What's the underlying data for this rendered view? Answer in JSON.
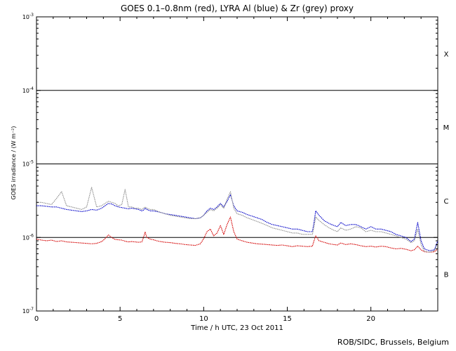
{
  "chart_data": {
    "type": "line",
    "title": "GOES 0.1–0.8nm (red), LYRA Al (blue) & Zr (grey) proxy",
    "xlabel": "Time / h UTC, 23 Oct 2011",
    "ylabel": "GOES irradiance / (W m⁻²)",
    "xlim": [
      0,
      24
    ],
    "ylim": [
      1e-07,
      0.001
    ],
    "yscale": "log",
    "grid": false,
    "x_ticks": [
      0,
      5,
      10,
      15,
      20
    ],
    "x_tick_labels": [
      "0",
      "5",
      "10",
      "15",
      "20"
    ],
    "y_ticks": [
      1e-07,
      1e-06,
      1e-05,
      0.0001,
      0.001
    ],
    "y_tick_labels": [
      {
        "base": "10",
        "exp": "-7"
      },
      {
        "base": "10",
        "exp": "-6"
      },
      {
        "base": "10",
        "exp": "-5"
      },
      {
        "base": "10",
        "exp": "-4"
      },
      {
        "base": "10",
        "exp": "-3"
      }
    ],
    "flare_thresholds": [
      1e-06,
      1e-05,
      0.0001
    ],
    "flare_classes": [
      {
        "label": "X",
        "y": 0.000316
      },
      {
        "label": "M",
        "y": 3.16e-05
      },
      {
        "label": "C",
        "y": 3.16e-06
      },
      {
        "label": "B",
        "y": 3.16e-07
      }
    ],
    "series": [
      {
        "color": "#d40000",
        "x": [
          0,
          0.3,
          0.6,
          0.9,
          1.2,
          1.5,
          1.8,
          2.1,
          2.4,
          2.7,
          3.0,
          3.3,
          3.6,
          3.9,
          4.1,
          4.3,
          4.5,
          4.7,
          4.9,
          5.1,
          5.3,
          5.5,
          5.7,
          5.9,
          6.1,
          6.3,
          6.4,
          6.5,
          6.6,
          6.8,
          7.0,
          7.2,
          7.4,
          7.7,
          8.0,
          8.3,
          8.6,
          8.9,
          9.2,
          9.5,
          9.8,
          10.0,
          10.2,
          10.4,
          10.6,
          10.8,
          11.0,
          11.2,
          11.4,
          11.6,
          11.8,
          12.0,
          12.3,
          12.6,
          12.9,
          13.2,
          13.5,
          13.8,
          14.1,
          14.4,
          14.7,
          15.0,
          15.3,
          15.6,
          15.9,
          16.2,
          16.5,
          16.6,
          16.7,
          16.9,
          17.2,
          17.5,
          17.8,
          18.0,
          18.2,
          18.5,
          18.8,
          19.1,
          19.4,
          19.7,
          20.0,
          20.3,
          20.6,
          20.9,
          21.2,
          21.5,
          21.8,
          22.1,
          22.4,
          22.6,
          22.8,
          23.0,
          23.2,
          23.5,
          23.8,
          24.0
        ],
        "values": [
          9.5e-07,
          9.2e-07,
          9e-07,
          9.2e-07,
          8.8e-07,
          9e-07,
          8.7e-07,
          8.6e-07,
          8.5e-07,
          8.4e-07,
          8.3e-07,
          8.2e-07,
          8.3e-07,
          8.8e-07,
          9.6e-07,
          1.08e-06,
          1e-06,
          9.4e-07,
          9.3e-07,
          9.2e-07,
          8.9e-07,
          8.7e-07,
          8.8e-07,
          8.7e-07,
          8.6e-07,
          8.7e-07,
          1e-06,
          1.18e-06,
          1e-06,
          9.5e-07,
          9.3e-07,
          9e-07,
          8.8e-07,
          8.6e-07,
          8.5e-07,
          8.3e-07,
          8.2e-07,
          8e-07,
          7.9e-07,
          7.8e-07,
          8.2e-07,
          9.6e-07,
          1.2e-06,
          1.3e-06,
          1.05e-06,
          1.15e-06,
          1.45e-06,
          1.1e-06,
          1.5e-06,
          1.9e-06,
          1.2e-06,
          9.5e-07,
          9e-07,
          8.6e-07,
          8.4e-07,
          8.2e-07,
          8.1e-07,
          8e-07,
          7.9e-07,
          7.8e-07,
          7.9e-07,
          7.7e-07,
          7.5e-07,
          7.7e-07,
          7.6e-07,
          7.5e-07,
          7.6e-07,
          9e-07,
          1.05e-06,
          9e-07,
          8.6e-07,
          8.2e-07,
          8e-07,
          7.9e-07,
          8.4e-07,
          8e-07,
          8.2e-07,
          8e-07,
          7.7e-07,
          7.5e-07,
          7.6e-07,
          7.4e-07,
          7.6e-07,
          7.5e-07,
          7.2e-07,
          7e-07,
          7.1e-07,
          6.9e-07,
          6.6e-07,
          6.8e-07,
          7.6e-07,
          6.8e-07,
          6.4e-07,
          6.3e-07,
          6.4e-07,
          7e-07
        ]
      },
      {
        "color": "#0000c8",
        "x": [
          0,
          0.3,
          0.6,
          0.9,
          1.2,
          1.5,
          1.8,
          2.1,
          2.4,
          2.7,
          3.0,
          3.3,
          3.6,
          3.9,
          4.1,
          4.3,
          4.5,
          4.7,
          4.9,
          5.1,
          5.3,
          5.5,
          5.7,
          5.9,
          6.1,
          6.3,
          6.4,
          6.5,
          6.6,
          6.8,
          7.0,
          7.2,
          7.4,
          7.7,
          8.0,
          8.3,
          8.6,
          8.9,
          9.2,
          9.5,
          9.8,
          10.0,
          10.2,
          10.4,
          10.6,
          10.8,
          11.0,
          11.2,
          11.4,
          11.6,
          11.8,
          12.0,
          12.3,
          12.6,
          12.9,
          13.2,
          13.5,
          13.8,
          14.1,
          14.4,
          14.7,
          15.0,
          15.3,
          15.6,
          15.9,
          16.2,
          16.5,
          16.6,
          16.7,
          16.9,
          17.2,
          17.5,
          17.8,
          18.0,
          18.2,
          18.5,
          18.8,
          19.1,
          19.4,
          19.7,
          20.0,
          20.3,
          20.6,
          20.9,
          21.2,
          21.5,
          21.8,
          22.1,
          22.4,
          22.6,
          22.8,
          23.0,
          23.2,
          23.5,
          23.8,
          24.0
        ],
        "values": [
          2.7e-06,
          2.7e-06,
          2.65e-06,
          2.6e-06,
          2.6e-06,
          2.5e-06,
          2.4e-06,
          2.35e-06,
          2.3e-06,
          2.25e-06,
          2.3e-06,
          2.4e-06,
          2.35e-06,
          2.5e-06,
          2.7e-06,
          2.9e-06,
          2.85e-06,
          2.7e-06,
          2.6e-06,
          2.55e-06,
          2.5e-06,
          2.45e-06,
          2.5e-06,
          2.45e-06,
          2.4e-06,
          2.3e-06,
          2.35e-06,
          2.5e-06,
          2.4e-06,
          2.3e-06,
          2.3e-06,
          2.25e-06,
          2.2e-06,
          2.1e-06,
          2.05e-06,
          2e-06,
          1.95e-06,
          1.9e-06,
          1.85e-06,
          1.8e-06,
          1.85e-06,
          2e-06,
          2.3e-06,
          2.5e-06,
          2.4e-06,
          2.6e-06,
          2.9e-06,
          2.6e-06,
          3.1e-06,
          3.8e-06,
          2.7e-06,
          2.3e-06,
          2.2e-06,
          2.05e-06,
          1.95e-06,
          1.85e-06,
          1.75e-06,
          1.6e-06,
          1.5e-06,
          1.45e-06,
          1.4e-06,
          1.35e-06,
          1.3e-06,
          1.3e-06,
          1.25e-06,
          1.2e-06,
          1.2e-06,
          1.6e-06,
          2.3e-06,
          2e-06,
          1.7e-06,
          1.55e-06,
          1.45e-06,
          1.4e-06,
          1.6e-06,
          1.45e-06,
          1.5e-06,
          1.5e-06,
          1.4e-06,
          1.3e-06,
          1.4e-06,
          1.3e-06,
          1.3e-06,
          1.25e-06,
          1.2e-06,
          1.1e-06,
          1.05e-06,
          1e-06,
          8.8e-07,
          9.5e-07,
          1.6e-06,
          9e-07,
          7e-07,
          6.6e-07,
          6.8e-07,
          9e-07
        ]
      },
      {
        "color": "#909090",
        "x": [
          0,
          0.3,
          0.6,
          0.9,
          1.2,
          1.5,
          1.8,
          2.1,
          2.4,
          2.7,
          3.0,
          3.3,
          3.6,
          3.9,
          4.1,
          4.3,
          4.5,
          4.7,
          4.9,
          5.1,
          5.3,
          5.5,
          5.7,
          5.9,
          6.1,
          6.3,
          6.4,
          6.5,
          6.6,
          6.8,
          7.0,
          7.2,
          7.4,
          7.7,
          8.0,
          8.3,
          8.6,
          8.9,
          9.2,
          9.5,
          9.8,
          10.0,
          10.2,
          10.4,
          10.6,
          10.8,
          11.0,
          11.2,
          11.4,
          11.6,
          11.8,
          12.0,
          12.3,
          12.6,
          12.9,
          13.2,
          13.5,
          13.8,
          14.1,
          14.4,
          14.7,
          15.0,
          15.3,
          15.6,
          15.9,
          16.2,
          16.5,
          16.6,
          16.7,
          16.9,
          17.2,
          17.5,
          17.8,
          18.0,
          18.2,
          18.5,
          18.8,
          19.1,
          19.4,
          19.7,
          20.0,
          20.3,
          20.6,
          20.9,
          21.2,
          21.5,
          21.8,
          22.1,
          22.4,
          22.6,
          22.8,
          23.0,
          23.2,
          23.5,
          23.8,
          24.0
        ],
        "values": [
          3e-06,
          3e-06,
          2.9e-06,
          2.8e-06,
          3.4e-06,
          4.2e-06,
          2.7e-06,
          2.6e-06,
          2.5e-06,
          2.4e-06,
          2.6e-06,
          4.8e-06,
          2.6e-06,
          2.7e-06,
          2.9e-06,
          3.1e-06,
          3e-06,
          2.9e-06,
          2.7e-06,
          2.8e-06,
          4.5e-06,
          2.6e-06,
          2.6e-06,
          2.5e-06,
          2.5e-06,
          2.4e-06,
          2.5e-06,
          2.6e-06,
          2.5e-06,
          2.4e-06,
          2.4e-06,
          2.3e-06,
          2.2e-06,
          2.1e-06,
          2e-06,
          1.95e-06,
          1.9e-06,
          1.85e-06,
          1.8e-06,
          1.8e-06,
          1.85e-06,
          2e-06,
          2.2e-06,
          2.4e-06,
          2.3e-06,
          2.5e-06,
          2.8e-06,
          2.5e-06,
          3.3e-06,
          4.2e-06,
          2.5e-06,
          2.1e-06,
          2e-06,
          1.85e-06,
          1.75e-06,
          1.65e-06,
          1.55e-06,
          1.45e-06,
          1.35e-06,
          1.3e-06,
          1.25e-06,
          1.2e-06,
          1.15e-06,
          1.15e-06,
          1.1e-06,
          1.1e-06,
          1.1e-06,
          1.4e-06,
          1.9e-06,
          1.7e-06,
          1.5e-06,
          1.35e-06,
          1.25e-06,
          1.2e-06,
          1.35e-06,
          1.25e-06,
          1.3e-06,
          1.4e-06,
          1.35e-06,
          1.2e-06,
          1.25e-06,
          1.2e-06,
          1.2e-06,
          1.15e-06,
          1.1e-06,
          1.05e-06,
          1e-06,
          9.5e-07,
          8.5e-07,
          9e-07,
          1.3e-06,
          8e-07,
          6.5e-07,
          6.3e-07,
          6.6e-07,
          8.5e-07
        ]
      }
    ]
  },
  "credit": "ROB/SIDC, Brussels, Belgium"
}
